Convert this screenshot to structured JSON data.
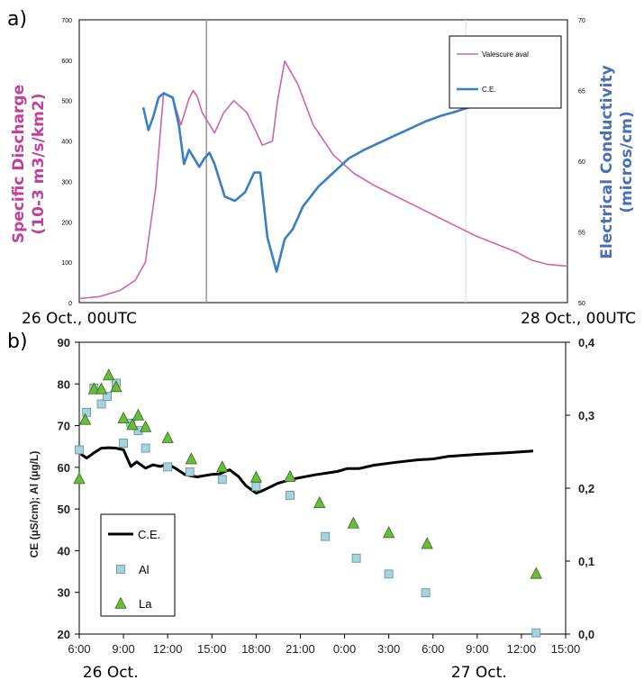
{
  "panel_a_label": "a)",
  "panel_b_label": "b)",
  "chart_data": [
    {
      "type": "line",
      "ylabel": "Specific Discharge\n(10-3 m3/s/km2)",
      "ylabel_lines": [
        "Specific Discharge",
        "(10-3 m3/s/km2)"
      ],
      "y2label_lines": [
        "Electrical Conductivity",
        "(micros/cm)"
      ],
      "x_start_label": "26 Oct., 00UTC",
      "x_end_label": "28 Oct., 00UTC",
      "xlim_hours": [
        0,
        48
      ],
      "ylim": [
        0,
        700
      ],
      "y2lim": [
        50,
        70
      ],
      "yticks": [
        "0",
        "100",
        "200",
        "300",
        "400",
        "500",
        "600",
        "700"
      ],
      "y2ticks": [
        "50",
        "55",
        "60",
        "65",
        "70"
      ],
      "legend": {
        "position": "top-right",
        "entries": [
          "Valescure aval",
          "C.E."
        ]
      },
      "vertical_lines_hours": [
        12.5,
        38
      ],
      "colors": {
        "discharge": "#cc66aa",
        "conductivity": "#3a7fc4",
        "ylabel": "#c2409a",
        "y2label": "#4a6fb5"
      },
      "series": [
        {
          "name": "Valescure aval",
          "axis": "left",
          "x": [
            0,
            2,
            4,
            5.5,
            6.5,
            7.5,
            8.3,
            9.2,
            10,
            10.8,
            11.2,
            11.6,
            12.1,
            13.3,
            14.2,
            15.2,
            16.5,
            18,
            19,
            19.5,
            20.2,
            21.5,
            23,
            25,
            27,
            29,
            31,
            33,
            35,
            37,
            39,
            41,
            43,
            44.5,
            46,
            48
          ],
          "y": [
            10,
            15,
            30,
            55,
            100,
            280,
            520,
            505,
            440,
            505,
            525,
            510,
            470,
            420,
            470,
            500,
            470,
            390,
            400,
            500,
            598,
            540,
            440,
            365,
            320,
            290,
            265,
            240,
            215,
            190,
            165,
            145,
            125,
            105,
            95,
            90
          ]
        },
        {
          "name": "C.E.",
          "axis": "right",
          "x": [
            6.3,
            6.8,
            7.3,
            7.8,
            8.3,
            9.2,
            9.8,
            10.3,
            10.8,
            11.3,
            11.8,
            12.3,
            12.8,
            13.3,
            14.3,
            15.3,
            16.3,
            17.2,
            17.8,
            18.5,
            19.4,
            20.2,
            21,
            22,
            23.5,
            25,
            26.5,
            28,
            29.5,
            31,
            32.5,
            34,
            35.5,
            37,
            38.3,
            39.5
          ],
          "y": [
            63.8,
            62.2,
            63.2,
            64.5,
            64.8,
            64.5,
            62.5,
            59.8,
            60.8,
            60.2,
            59.6,
            60.2,
            60.6,
            59.8,
            57.5,
            57.2,
            57.8,
            59.2,
            59.2,
            54.6,
            52.2,
            54.5,
            55.2,
            56.8,
            58.2,
            59.2,
            60.2,
            60.8,
            61.3,
            61.8,
            62.3,
            62.8,
            63.2,
            63.5,
            63.8,
            64.0
          ]
        }
      ]
    },
    {
      "type": "scatter",
      "ylabel": "CE (µS/cm); Al (µg/L)",
      "x_ticks": [
        "6:00",
        "9:00",
        "12:00",
        "15:00",
        "18:00",
        "21:00",
        "0:00",
        "3:00",
        "6:00",
        "9:00",
        "12:00",
        "15:00"
      ],
      "x_tick_hours": [
        6,
        9,
        12,
        15,
        18,
        21,
        24,
        27,
        30,
        33,
        36,
        39
      ],
      "xlim_hours": [
        6,
        39
      ],
      "date_labels": [
        {
          "text": "26 Oct.",
          "hour": 8
        },
        {
          "text": "27 Oct.",
          "hour": 33
        }
      ],
      "ylim": [
        20,
        90
      ],
      "yticks": [
        "20",
        "30",
        "40",
        "50",
        "60",
        "70",
        "80",
        "90"
      ],
      "y2lim": [
        0,
        0.4
      ],
      "y2ticks": [
        "0,0",
        "0,1",
        "0,2",
        "0,3",
        "0,4"
      ],
      "legend": {
        "position": "bottom-left",
        "entries": [
          "C.E.",
          "Al",
          "La"
        ]
      },
      "colors": {
        "ce": "#000000",
        "al_fill": "#a9d3dc",
        "al_edge": "#5b8f9b",
        "la_fill": "#6dbb3a",
        "la_edge": "#2f6b1f"
      },
      "series": [
        {
          "name": "C.E.",
          "marker": "line",
          "axis": "left",
          "x": [
            6.1,
            6.5,
            7,
            7.5,
            8,
            8.5,
            9,
            9.5,
            9.9,
            10.5,
            11,
            11.5,
            12,
            12.6,
            13.2,
            14,
            15,
            15.5,
            16.2,
            16.8,
            17.3,
            18,
            18.5,
            19.5,
            20.5,
            22,
            23.5,
            24.2,
            25,
            26,
            27.5,
            29,
            30,
            31,
            33,
            35,
            36.8
          ],
          "y": [
            63.2,
            62.2,
            63.5,
            64.6,
            64.7,
            64.6,
            64.2,
            60.2,
            61.3,
            59.8,
            60.6,
            60.2,
            60.8,
            59.6,
            58.2,
            57.7,
            58.3,
            58.4,
            59.4,
            57.8,
            55.6,
            53.8,
            54.5,
            56.2,
            57.2,
            58.2,
            59.0,
            59.7,
            59.7,
            60.5,
            61.2,
            61.8,
            62.0,
            62.6,
            63.1,
            63.5,
            63.9
          ]
        },
        {
          "name": "Al",
          "marker": "square",
          "axis": "left",
          "x": [
            6.0,
            6.5,
            7.0,
            7.5,
            7.9,
            8.5,
            9.0,
            9.5,
            10.0,
            10.5,
            12.0,
            13.5,
            15.7,
            18.0,
            20.3,
            22.7,
            24.8,
            27.0,
            29.5,
            37.0
          ],
          "y": [
            64.2,
            73.2,
            79.0,
            75.2,
            77.0,
            80.2,
            65.8,
            70.6,
            68.8,
            64.6,
            60.1,
            58.9,
            57.1,
            55.4,
            53.3,
            43.4,
            38.2,
            34.4,
            29.9,
            20.3
          ]
        },
        {
          "name": "La",
          "marker": "triangle",
          "axis": "right",
          "x": [
            6.0,
            6.4,
            7.0,
            7.5,
            8.0,
            8.5,
            9.0,
            9.6,
            10.0,
            10.5,
            12.0,
            13.6,
            15.7,
            18.0,
            20.3,
            22.3,
            24.6,
            27.0,
            29.6,
            37.0
          ],
          "y": [
            0.213,
            0.294,
            0.336,
            0.336,
            0.355,
            0.339,
            0.296,
            0.287,
            0.3,
            0.284,
            0.269,
            0.24,
            0.229,
            0.215,
            0.216,
            0.18,
            0.152,
            0.139,
            0.124,
            0.083
          ]
        }
      ]
    }
  ]
}
